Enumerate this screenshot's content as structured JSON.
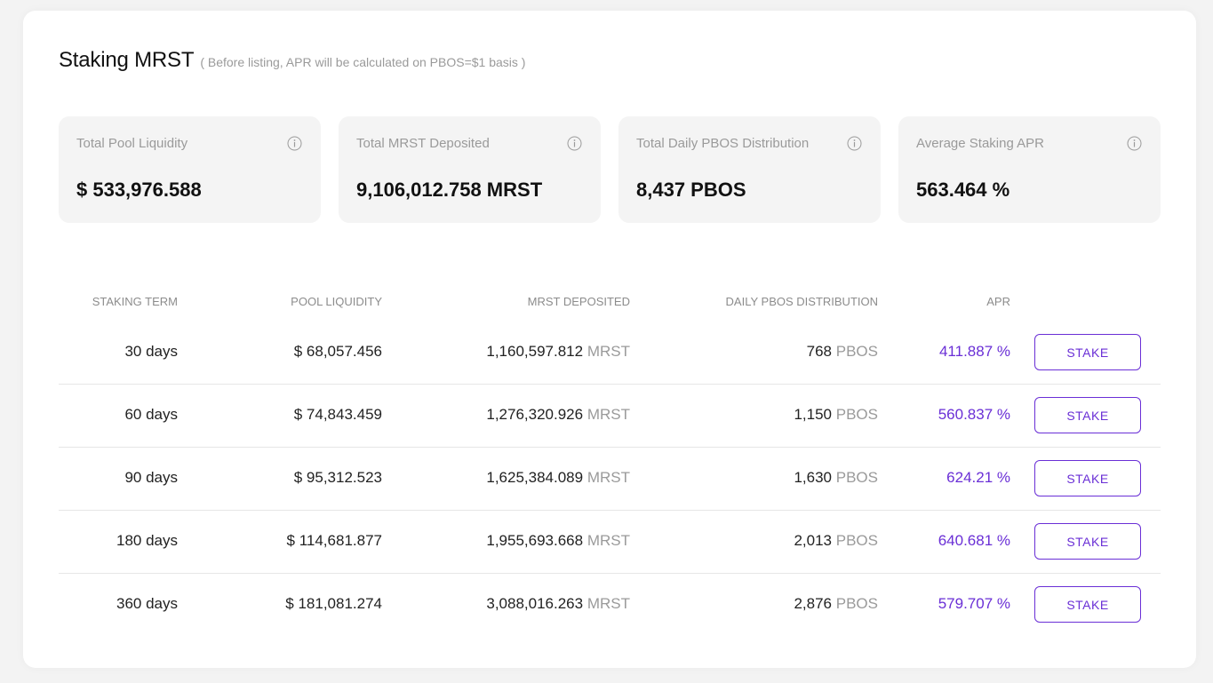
{
  "header": {
    "title": "Staking MRST",
    "subtitle": "( Before listing, APR will be calculated on PBOS=$1 basis )"
  },
  "stats": [
    {
      "label": "Total Pool Liquidity",
      "value": "$ 533,976.588",
      "icon": "info-icon"
    },
    {
      "label": "Total MRST Deposited",
      "value": "9,106,012.758 MRST",
      "icon": "info-icon"
    },
    {
      "label": "Total Daily PBOS Distribution",
      "value": "8,437 PBOS",
      "icon": "info-icon"
    },
    {
      "label": "Average Staking APR",
      "value": "563.464 %",
      "icon": "info-icon"
    }
  ],
  "table": {
    "columns": [
      "STAKING TERM",
      "POOL LIQUIDITY",
      "MRST DEPOSITED",
      "DAILY PBOS DISTRIBUTION",
      "APR"
    ],
    "rows": [
      {
        "term": "30 days",
        "liquidity": "$ 68,057.456",
        "deposited": "1,160,597.812",
        "deposited_unit": "MRST",
        "distribution": "768",
        "distribution_unit": "PBOS",
        "apr": "411.887 %",
        "action": "STAKE"
      },
      {
        "term": "60 days",
        "liquidity": "$ 74,843.459",
        "deposited": "1,276,320.926",
        "deposited_unit": "MRST",
        "distribution": "1,150",
        "distribution_unit": "PBOS",
        "apr": "560.837 %",
        "action": "STAKE"
      },
      {
        "term": "90 days",
        "liquidity": "$ 95,312.523",
        "deposited": "1,625,384.089",
        "deposited_unit": "MRST",
        "distribution": "1,630",
        "distribution_unit": "PBOS",
        "apr": "624.21 %",
        "action": "STAKE"
      },
      {
        "term": "180 days",
        "liquidity": "$ 114,681.877",
        "deposited": "1,955,693.668",
        "deposited_unit": "MRST",
        "distribution": "2,013",
        "distribution_unit": "PBOS",
        "apr": "640.681 %",
        "action": "STAKE"
      },
      {
        "term": "360 days",
        "liquidity": "$ 181,081.274",
        "deposited": "3,088,016.263",
        "deposited_unit": "MRST",
        "distribution": "2,876",
        "distribution_unit": "PBOS",
        "apr": "579.707 %",
        "action": "STAKE"
      }
    ]
  },
  "colors": {
    "accent": "#6a2fd6",
    "muted_text": "#9a9a9a",
    "stat_card_bg": "#f4f4f4"
  }
}
